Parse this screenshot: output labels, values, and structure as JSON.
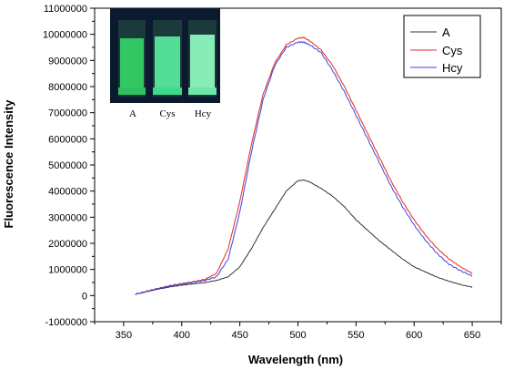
{
  "chart_data": {
    "type": "line",
    "title": "",
    "xlabel": "Wavelength (nm)",
    "ylabel": "Fluorescence Intensity",
    "xlim": [
      325,
      675
    ],
    "ylim": [
      -1000000,
      11000000
    ],
    "x_ticks": [
      350,
      400,
      450,
      500,
      550,
      600,
      650
    ],
    "y_ticks": [
      -1000000,
      0,
      1000000,
      2000000,
      3000000,
      4000000,
      5000000,
      6000000,
      7000000,
      8000000,
      9000000,
      10000000,
      11000000
    ],
    "grid": false,
    "legend_position": "top-right",
    "x": [
      360,
      370,
      380,
      390,
      400,
      410,
      420,
      430,
      440,
      450,
      460,
      470,
      480,
      490,
      500,
      505,
      510,
      520,
      530,
      540,
      550,
      560,
      570,
      580,
      590,
      600,
      610,
      620,
      630,
      640,
      650
    ],
    "series": [
      {
        "name": "A",
        "color": "#333333",
        "values": [
          50000,
          150000,
          250000,
          330000,
          400000,
          450000,
          500000,
          580000,
          720000,
          1100000,
          1800000,
          2600000,
          3300000,
          4000000,
          4400000,
          4420000,
          4350000,
          4100000,
          3800000,
          3400000,
          2900000,
          2500000,
          2100000,
          1750000,
          1400000,
          1100000,
          900000,
          700000,
          550000,
          420000,
          320000
        ]
      },
      {
        "name": "Cys",
        "color": "#e8251f",
        "values": [
          50000,
          170000,
          280000,
          380000,
          460000,
          530000,
          620000,
          850000,
          1800000,
          3600000,
          5800000,
          7700000,
          8900000,
          9600000,
          9850000,
          9880000,
          9750000,
          9400000,
          8800000,
          8000000,
          7100000,
          6200000,
          5300000,
          4400000,
          3600000,
          2900000,
          2300000,
          1800000,
          1400000,
          1100000,
          850000
        ]
      },
      {
        "name": "Hcy",
        "color": "#3b45e0",
        "values": [
          50000,
          160000,
          270000,
          360000,
          440000,
          510000,
          580000,
          720000,
          1400000,
          3200000,
          5500000,
          7500000,
          8800000,
          9500000,
          9700000,
          9700000,
          9600000,
          9300000,
          8600000,
          7800000,
          6900000,
          6000000,
          5100000,
          4200000,
          3400000,
          2700000,
          2100000,
          1600000,
          1200000,
          950000,
          750000
        ]
      }
    ],
    "inset": {
      "labels": [
        "A",
        "Cys",
        "Hcy"
      ],
      "background_color": "#0b1a2e",
      "glow_colors": [
        "#36e06a",
        "#5bf0a2",
        "#8ef5c0"
      ]
    }
  }
}
